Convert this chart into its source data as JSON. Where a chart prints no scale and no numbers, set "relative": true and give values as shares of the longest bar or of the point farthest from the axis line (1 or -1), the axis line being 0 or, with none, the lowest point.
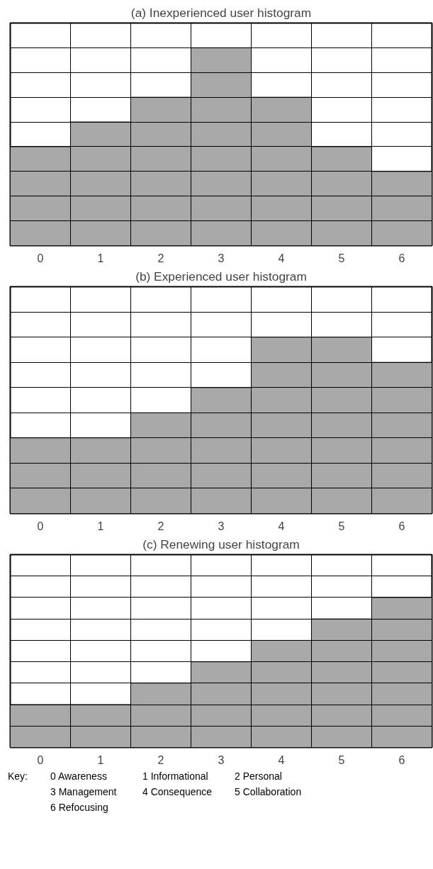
{
  "chart_data": [
    {
      "type": "bar",
      "title": "(a) Inexperienced user histogram",
      "categories": [
        "0",
        "1",
        "2",
        "3",
        "4",
        "5",
        "6"
      ],
      "values": [
        0.5,
        0.625,
        0.75,
        1,
        0.75,
        0.5,
        0.375
      ],
      "color": "#a9a9a9",
      "relative": true,
      "grid": true
    },
    {
      "type": "bar",
      "title": "(b) Experienced user histogram",
      "categories": [
        "0",
        "1",
        "2",
        "3",
        "4",
        "5",
        "6"
      ],
      "values": [
        0.429,
        0.429,
        0.571,
        0.714,
        1,
        1,
        0.857
      ],
      "color": "#a9a9a9",
      "relative": true,
      "grid": true
    },
    {
      "type": "bar",
      "title": "(c) Renewing user histogram",
      "categories": [
        "0",
        "1",
        "2",
        "3",
        "4",
        "5",
        "6"
      ],
      "values": [
        0.286,
        0.286,
        0.429,
        0.571,
        0.714,
        0.857,
        1
      ],
      "color": "#a9a9a9",
      "relative": true,
      "grid": true,
      "annotations": [
        "Key:",
        "0 Awareness",
        "1 Informational",
        "2 Personal",
        "3 Management",
        "4 Consequence",
        "5 Collaboration",
        "6 Refocusing"
      ]
    }
  ]
}
